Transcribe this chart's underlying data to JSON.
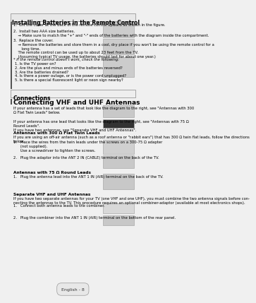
{
  "bg_color": "#f0f0f0",
  "page_bg": "#ffffff",
  "section1_title": "Installing Batteries in the Remote Control",
  "section1_items": [
    "1.  Lift the cover at the back of the remote control upward as shown in the figure.",
    "2.  Install two AAA size batteries.\n     Make sure to match the \"+\" and \"-\" ends of the batteries with the diagram inside the compartment.",
    "3.  Replace the cover.\n     Remove the batteries and store them in a cool, dry place if you won't be using the remote control for a\n     long time.\n     The remote control can be used up to about 23 feet from the TV.\n     (Assuming typical TV usage, the batteries should last for about one year.)",
    "* If the remote control doesn't work, check the following:\n  1. Is the TV power on?\n  2. Are the plus and minus ends of the batteries reversed?\n  3. Are the batteries drained?\n  4. Is there a power outage, or is the power cord unplugged?\n  5. Is there a special fluorescent light or neon sign nearby?"
  ],
  "connections_label": "Connections",
  "section2_title": "Connecting VHF and UHF Antennas",
  "section2_intro1": "If your antenna has a set of leads that look like the diagram to the right, see \"Antennas with 300\nΩ Flat Twin Leads\" below.",
  "section2_intro2": "If your antenna has one lead that looks like the diagram to the right, see \"Antennas with 75 Ω\nRound Leads\".\nIf you have two antennas, see \"Separate VHF and UHF Antennas\".",
  "subsection1_title": "Antennas with 300 Ω Flat Twin Leads",
  "subsection1_intro": "If you are using an off-air antenna (such as a roof antenna or \"rabbit ears\") that has 300 Ω twin flat leads, follow the directions\nbelow.",
  "subsection1_items": [
    "1.   Place the wires from the twin leads under the screws on a 300-75 Ω adapter\n      (not supplied).\n      Use a screwdriver to tighten the screws.",
    "2.   Plug the adaptor into the ANT 2 IN (CABLE) terminal on the back of the TV."
  ],
  "subsection2_title": "Antennas with 75 Ω Round Leads",
  "subsection2_items": [
    "1.   Plug the antenna lead into the ANT 1 IN (AIR) terminal on the back of the TV."
  ],
  "subsection3_title": "Separate VHF and UHF Antennas",
  "subsection3_intro": "If you have two separate antennas for your TV (one VHF and one UHF), you must combine the two antenna signals before con-\nnecting the antennas to the TV. This procedure requires an optional combiner-adaptor (available at most electronics shops).",
  "subsection3_items": [
    "1.   Connect both antenna leads to the combiner.",
    "2.   Plug the combiner into the ANT 1 IN (AIR) terminal on the bottom of the rear panel."
  ],
  "footer": "English - 8"
}
